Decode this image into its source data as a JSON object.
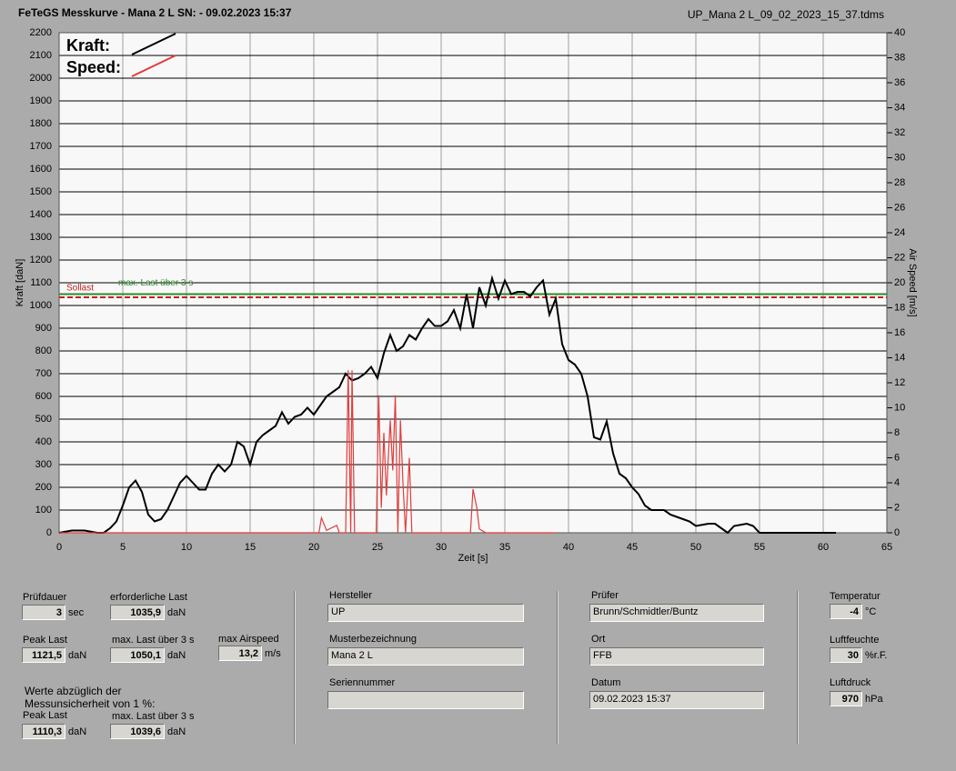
{
  "header": {
    "title": "FeTeGS Messkurve - Mana 2 L  SN:  - 09.02.2023 15:37",
    "file": "UP_Mana 2 L_09_02_2023_15_37.tdms"
  },
  "chart_data": {
    "type": "line",
    "xlabel": "Zeit [s]",
    "ylabel": "Kraft [daN]",
    "y2label": "Air Speed [m/s]",
    "xlim": [
      0,
      65
    ],
    "xticks": [
      0,
      5,
      10,
      15,
      20,
      25,
      30,
      35,
      40,
      45,
      50,
      55,
      60,
      65
    ],
    "ylim": [
      0,
      2200
    ],
    "yticks": [
      0,
      100,
      200,
      300,
      400,
      500,
      600,
      700,
      800,
      900,
      1000,
      1100,
      1200,
      1300,
      1400,
      1500,
      1600,
      1700,
      1800,
      1900,
      2000,
      2100,
      2200
    ],
    "y2lim": [
      0,
      40
    ],
    "y2ticks": [
      0,
      2,
      4,
      6,
      8,
      10,
      12,
      14,
      16,
      18,
      20,
      22,
      24,
      26,
      28,
      30,
      32,
      34,
      36,
      38,
      40
    ],
    "grid": true,
    "series": [
      {
        "name": "Kraft:",
        "color": "#000000",
        "x": [
          0,
          1,
          2,
          3,
          3.5,
          4,
          4.5,
          5,
          5.5,
          6,
          6.5,
          7,
          7.5,
          8,
          8.5,
          9,
          9.5,
          10,
          10.5,
          11,
          11.5,
          12,
          12.5,
          13,
          13.5,
          14,
          14.5,
          15,
          15.5,
          16,
          16.5,
          17,
          17.5,
          18,
          18.5,
          19,
          19.5,
          20,
          20.5,
          21,
          21.5,
          22,
          22.5,
          23,
          23.5,
          24,
          24.5,
          25,
          25.5,
          26,
          26.5,
          27,
          27.5,
          28,
          28.5,
          29,
          29.5,
          30,
          30.5,
          31,
          31.5,
          32,
          32.5,
          33,
          33.5,
          34,
          34.5,
          35,
          35.5,
          36,
          36.5,
          37,
          37.5,
          38,
          38.5,
          39,
          39.5,
          40,
          40.5,
          41,
          41.5,
          42,
          42.5,
          43,
          43.5,
          44,
          44.5,
          45,
          45.5,
          46,
          46.5,
          47,
          47.5,
          48,
          48.5,
          49,
          49.5,
          50,
          51,
          51.5,
          52,
          52.5,
          53,
          54,
          54.5,
          55,
          57,
          61
        ],
        "values": [
          0,
          10,
          10,
          0,
          0,
          20,
          50,
          120,
          200,
          230,
          180,
          80,
          50,
          60,
          100,
          160,
          220,
          250,
          220,
          190,
          190,
          260,
          300,
          270,
          300,
          400,
          380,
          300,
          400,
          430,
          450,
          470,
          530,
          480,
          510,
          520,
          550,
          520,
          560,
          600,
          620,
          640,
          700,
          670,
          680,
          700,
          730,
          680,
          790,
          870,
          800,
          820,
          870,
          850,
          900,
          940,
          910,
          910,
          930,
          980,
          900,
          1050,
          900,
          1080,
          1000,
          1120,
          1030,
          1110,
          1050,
          1060,
          1060,
          1040,
          1080,
          1110,
          960,
          1030,
          830,
          760,
          740,
          700,
          600,
          420,
          410,
          490,
          350,
          260,
          240,
          200,
          170,
          120,
          100,
          100,
          100,
          80,
          70,
          60,
          50,
          30,
          40,
          40,
          20,
          0,
          30,
          40,
          30,
          0,
          0,
          0
        ]
      },
      {
        "name": "Speed:",
        "color": "#e03c3c",
        "axis": "y2",
        "x": [
          0,
          20.4,
          20.6,
          21,
          21.8,
          22,
          22.5,
          22.7,
          22.9,
          23,
          23.2,
          24.9,
          25.1,
          25.3,
          25.5,
          25.7,
          26,
          26.2,
          26.4,
          26.6,
          26.8,
          27,
          27.2,
          27.5,
          27.7,
          32.3,
          32.5,
          32.8,
          33,
          33.5,
          39
        ],
        "values": [
          0,
          0,
          1.2,
          0.2,
          0.6,
          0,
          0,
          13,
          0,
          13,
          0,
          0,
          11,
          2,
          8,
          3,
          9,
          5,
          11,
          0,
          9,
          4,
          0,
          6,
          0,
          0,
          3.5,
          2,
          0.3,
          0,
          0
        ]
      }
    ],
    "reference_lines": [
      {
        "label": "Sollast",
        "value": 1035.9,
        "color": "#c02020",
        "dashed": true
      },
      {
        "label": "max. Last über  3 s",
        "value": 1050.1,
        "color": "#2a8a2a"
      }
    ]
  },
  "form": {
    "fields": [
      {
        "label": "Prüfdauer",
        "value": "3",
        "unit": "sec"
      },
      {
        "label": "erforderliche Last",
        "value": "1035,9",
        "unit": "daN"
      },
      {
        "label": "Peak Last",
        "value": "1121,5",
        "unit": "daN"
      },
      {
        "label": "max. Last über  3 s",
        "value": "1050,1",
        "unit": "daN"
      },
      {
        "label": "max Airspeed",
        "value": "13,2",
        "unit": "m/s"
      },
      {
        "label": "Peak Last",
        "value": "1110,3",
        "unit": "daN"
      },
      {
        "label": "max. Last über  3 s",
        "value": "1039,6",
        "unit": "daN"
      },
      {
        "label": "Hersteller",
        "value": "UP"
      },
      {
        "label": "Musterbezeichnung",
        "value": "Mana 2 L"
      },
      {
        "label": "Seriennummer"
      },
      {
        "label": "Prüfer",
        "value": "Brunn/Schmidtler/Buntz"
      },
      {
        "label": "Ort",
        "value": "FFB"
      },
      {
        "label": "Datum",
        "value": "09.02.2023 15:37"
      },
      {
        "label": "Temperatur",
        "value": "-4",
        "unit": "°C"
      },
      {
        "label": "Luftfeuchte",
        "value": "30",
        "unit": "%r.F."
      },
      {
        "label": "Luftdruck",
        "value": "970",
        "unit": "hPa"
      }
    ],
    "note_lines": [
      "Werte abzüglich der",
      "Messunsicherheit von 1  %:"
    ]
  }
}
